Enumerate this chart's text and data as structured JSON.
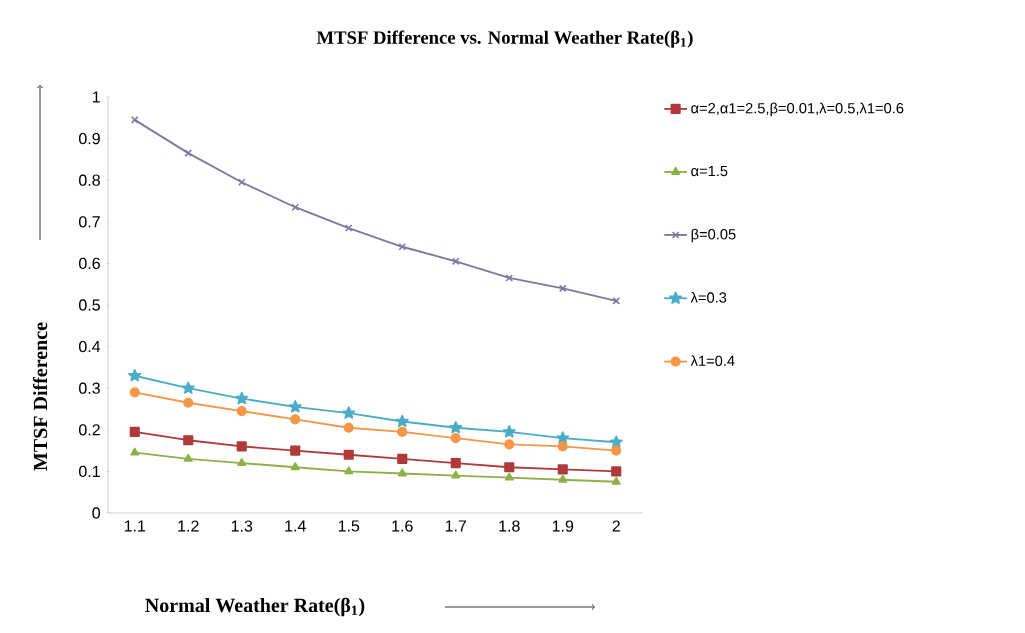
{
  "chart_data": {
    "type": "line",
    "title": "MTSF Difference vs. Normal Weather Rate(β$_{1}$)",
    "xlabel": "Normal Weather Rate(β$_{1}$)",
    "ylabel": "MTSF Difference",
    "categories": [
      "1.1",
      "1.2",
      "1.3",
      "1.4",
      "1.5",
      "1.6",
      "1.7",
      "1.8",
      "1.9",
      "2"
    ],
    "series": [
      {
        "name": "α=2,α1=2.5,β=0.01,λ=0.5,λ1=0.6",
        "color": "#b03a3a",
        "marker": "square",
        "values": [
          0.195,
          0.175,
          0.16,
          0.15,
          0.14,
          0.13,
          0.12,
          0.11,
          0.105,
          0.1
        ]
      },
      {
        "name": "α=1.5",
        "color": "#8db048",
        "marker": "triangle",
        "values": [
          0.145,
          0.13,
          0.12,
          0.11,
          0.1,
          0.095,
          0.09,
          0.085,
          0.08,
          0.075
        ]
      },
      {
        "name": "β=0.05",
        "color": "#7b7a9e",
        "marker": "cross",
        "values": [
          0.945,
          0.865,
          0.795,
          0.735,
          0.685,
          0.64,
          0.605,
          0.565,
          0.54,
          0.51
        ]
      },
      {
        "name": "λ=0.3",
        "color": "#4bacc6",
        "marker": "star",
        "values": [
          0.33,
          0.3,
          0.275,
          0.255,
          0.24,
          0.22,
          0.205,
          0.195,
          0.18,
          0.17
        ]
      },
      {
        "name": "λ1=0.4",
        "color": "#f79646",
        "marker": "circle",
        "values": [
          0.29,
          0.265,
          0.245,
          0.225,
          0.205,
          0.195,
          0.18,
          0.165,
          0.16,
          0.15
        ]
      }
    ],
    "ylim": [
      0,
      1
    ],
    "yticks": [
      0,
      0.1,
      0.2,
      0.3,
      0.4,
      0.5,
      0.6,
      0.7,
      0.8,
      0.9,
      1
    ],
    "grid": false,
    "legend": "right"
  }
}
